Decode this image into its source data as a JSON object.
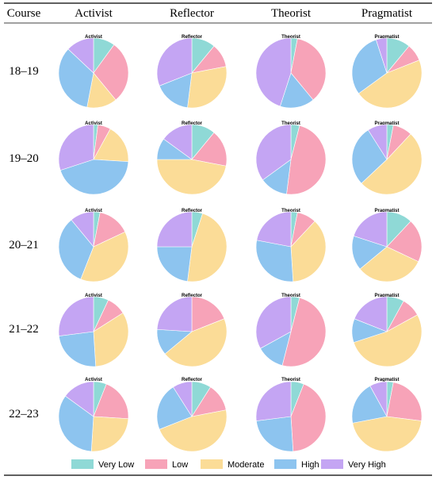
{
  "header": {
    "course_label": "Course",
    "columns": [
      "Activist",
      "Reflector",
      "Theorist",
      "Pragmatist"
    ]
  },
  "rows": [
    "18–19",
    "19–20",
    "20–21",
    "21–22",
    "22–23"
  ],
  "legend": {
    "items": [
      {
        "label": "Very Low",
        "color": "#8fd9d6"
      },
      {
        "label": "Low",
        "color": "#f7a3b8"
      },
      {
        "label": "Moderate",
        "color": "#fbdc97"
      },
      {
        "label": "High",
        "color": "#8dc4ef"
      },
      {
        "label": "Very High",
        "color": "#c4a5f3"
      }
    ]
  },
  "chart_data": {
    "type": "pie",
    "categories": [
      "Very Low",
      "Low",
      "Moderate",
      "High",
      "Very High"
    ],
    "columns": [
      "Activist",
      "Reflector",
      "Theorist",
      "Pragmatist"
    ],
    "rows": [
      "18–19",
      "19–20",
      "20–21",
      "21–22",
      "22–23"
    ],
    "pies": [
      [
        [
          10,
          29,
          14,
          34,
          13
        ],
        [
          11,
          11,
          30,
          17,
          31
        ],
        [
          3,
          36,
          0,
          16,
          45
        ],
        [
          11,
          8,
          46,
          30,
          5
        ]
      ],
      [
        [
          2,
          6,
          18,
          44,
          30
        ],
        [
          11,
          17,
          47,
          10,
          15
        ],
        [
          4,
          48,
          0,
          13,
          35
        ],
        [
          3,
          9,
          51,
          28,
          9
        ]
      ],
      [
        [
          3,
          15,
          38,
          33,
          11
        ],
        [
          5,
          0,
          47,
          23,
          25
        ],
        [
          3,
          9,
          37,
          29,
          22
        ],
        [
          12,
          20,
          32,
          16,
          20
        ]
      ],
      [
        [
          7,
          9,
          33,
          24,
          27
        ],
        [
          0,
          19,
          45,
          12,
          24
        ],
        [
          4,
          50,
          0,
          13,
          33
        ],
        [
          8,
          9,
          53,
          11,
          19
        ]
      ],
      [
        [
          6,
          20,
          25,
          34,
          15
        ],
        [
          9,
          13,
          47,
          22,
          9
        ],
        [
          6,
          43,
          0,
          24,
          27
        ],
        [
          3,
          24,
          45,
          20,
          8
        ]
      ]
    ]
  }
}
